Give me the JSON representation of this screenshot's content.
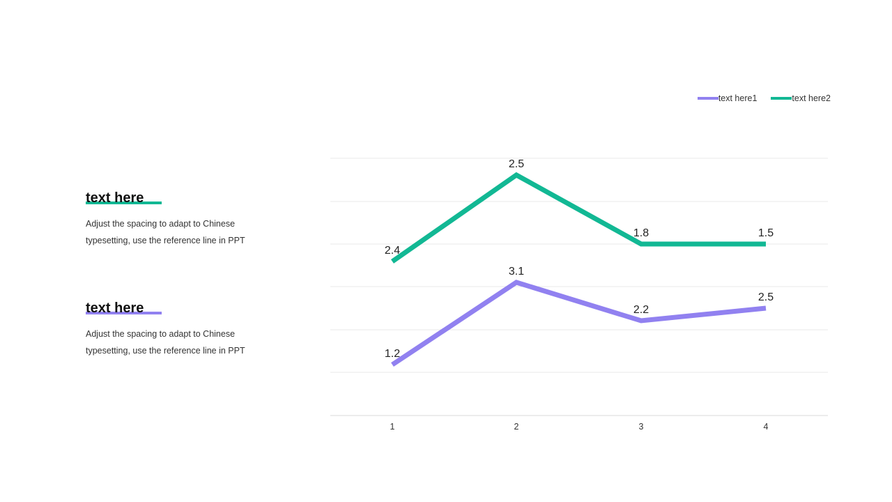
{
  "blocks": [
    {
      "heading": "text here",
      "body_line1": "Adjust the spacing to adapt to Chinese",
      "body_line2": "typesetting, use the reference line in PPT",
      "accent": "#12b894"
    },
    {
      "heading": "text here",
      "body_line1": "Adjust the spacing to adapt to Chinese",
      "body_line2": "typesetting, use the reference line in PPT",
      "accent": "#9181f0"
    }
  ],
  "chart_data": {
    "type": "line",
    "categories": [
      "1",
      "2",
      "3",
      "4"
    ],
    "series": [
      {
        "name": "text here1",
        "color": "#9181f0",
        "values": [
          1.2,
          3.1,
          2.2,
          2.5
        ],
        "offset": 0
      },
      {
        "name": "text here2",
        "color": "#12b894",
        "values": [
          2.4,
          2.5,
          1.8,
          1.5
        ],
        "offset": 5
      }
    ],
    "labels": {
      "text here1": [
        "1.2",
        "3.1",
        "2.2",
        "2.5"
      ],
      "text here2": [
        "2.4",
        "2.5",
        "1.8",
        "1.5"
      ]
    },
    "grid": true,
    "legend": "top-right"
  }
}
